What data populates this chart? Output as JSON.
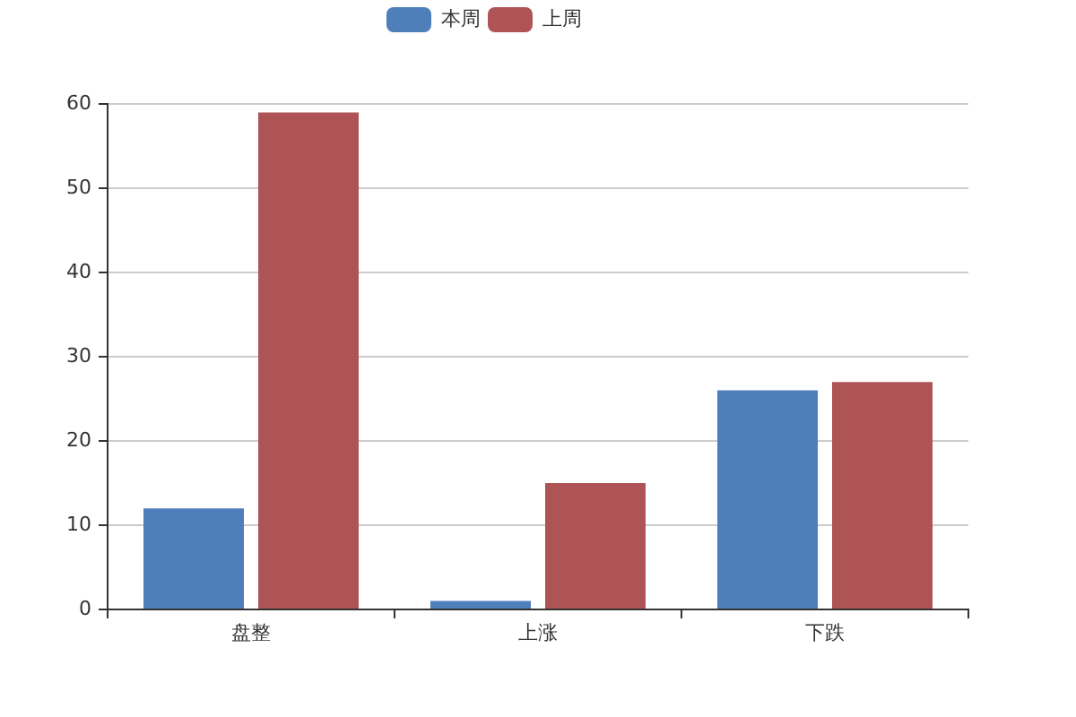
{
  "chart_data": {
    "type": "bar",
    "categories": [
      "盘整",
      "上涨",
      "下跌"
    ],
    "series": [
      {
        "name": "本周",
        "color": "#4e7fbb",
        "values": [
          12,
          1,
          26
        ]
      },
      {
        "name": "上周",
        "color": "#ae5457",
        "values": [
          59,
          15,
          27
        ]
      }
    ],
    "ylim": [
      0,
      60
    ],
    "yticks": [
      0,
      10,
      20,
      30,
      40,
      50,
      60
    ],
    "grid": "y",
    "legend": "top"
  }
}
